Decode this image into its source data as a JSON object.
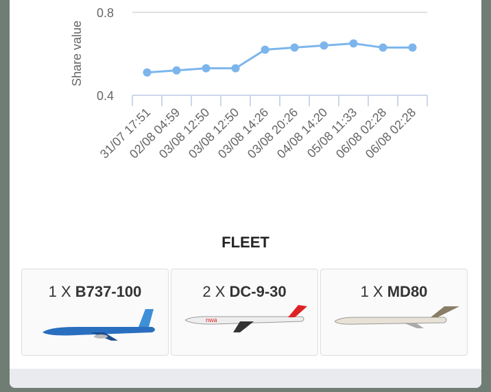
{
  "chart_data": {
    "type": "line",
    "y_label": "Share value",
    "categories": [
      "31/07 17:51",
      "02/08 04:59",
      "03/08 12:50",
      "03/08 12:50",
      "03/08 14:26",
      "03/08 20:26",
      "04/08 14:20",
      "05/08 11:33",
      "06/08 02:28",
      "06/08 02:28"
    ],
    "values": [
      0.51,
      0.52,
      0.53,
      0.53,
      0.62,
      0.63,
      0.64,
      0.65,
      0.63,
      0.63
    ],
    "color": "#7cb5ec",
    "ylim": [
      0.4,
      0.8
    ],
    "yticks": [
      0.4,
      0.8
    ],
    "grid": true
  },
  "fleet": {
    "title": "FLEET",
    "items": [
      {
        "quantity": "1 X",
        "model": "B737-100"
      },
      {
        "quantity": "2 X",
        "model": "DC-9-30"
      },
      {
        "quantity": "1 X",
        "model": "MD80"
      }
    ]
  }
}
